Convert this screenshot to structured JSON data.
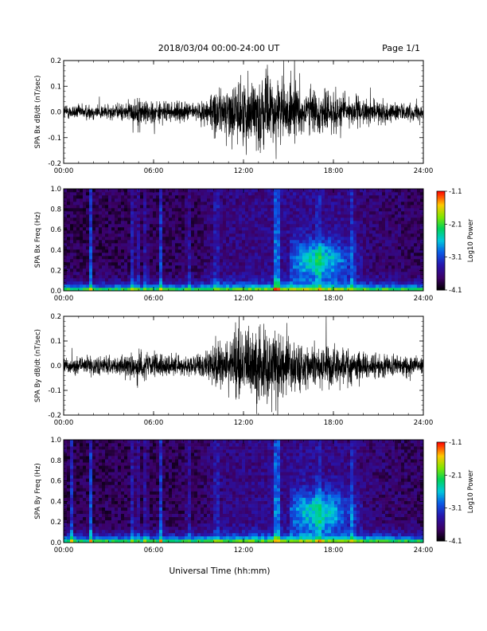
{
  "header": {
    "date_range": "2018/03/04  00:00-24:00 UT",
    "page": "Page 1/1"
  },
  "x_axis": {
    "label": "Universal Time (hh:mm)",
    "ticks": [
      "00:00",
      "06:00",
      "12:00",
      "18:00",
      "24:00"
    ]
  },
  "colorbar": {
    "label": "Log10 Power",
    "ticks": [
      "-1.1",
      "-2.1",
      "-3.1",
      "-4.1"
    ]
  },
  "chart_data": [
    {
      "type": "line",
      "panel": "bx_waveform",
      "ylabel": "SPA Bx dB/dt (nT/sec)",
      "xlim": [
        0,
        24
      ],
      "ylim": [
        -0.2,
        0.2
      ],
      "yticks": [
        "-0.2",
        "-0.1",
        "0.0",
        "0.1",
        "0.2"
      ],
      "envelope": {
        "hours": [
          0,
          1,
          2,
          3,
          4,
          4.5,
          5,
          5.5,
          6,
          6.5,
          7,
          8,
          9,
          9.5,
          10,
          10.5,
          11,
          12,
          13,
          14,
          14.5,
          15,
          16,
          17,
          18,
          19,
          20,
          21,
          22,
          23,
          24
        ],
        "amplitude": [
          0.035,
          0.035,
          0.04,
          0.035,
          0.04,
          0.05,
          0.07,
          0.06,
          0.055,
          0.05,
          0.045,
          0.045,
          0.04,
          0.07,
          0.1,
          0.11,
          0.12,
          0.16,
          0.17,
          0.16,
          0.15,
          0.14,
          0.11,
          0.1,
          0.1,
          0.08,
          0.06,
          0.05,
          0.045,
          0.04,
          0.035
        ]
      }
    },
    {
      "type": "heatmap",
      "panel": "bx_spectrogram",
      "ylabel": "SPA Bx Freq (Hz)",
      "xlim": [
        0,
        24
      ],
      "ylim": [
        0,
        1.0
      ],
      "yticks": [
        "0.0",
        "0.2",
        "0.4",
        "0.6",
        "0.8",
        "1.0"
      ],
      "zlim": [
        -4.1,
        -1.1
      ],
      "bright_columns_hours": [
        1.8,
        4.5,
        4.9,
        5.5,
        6.5,
        8.3,
        10.2,
        14.1,
        14.3,
        17.0,
        19.3
      ],
      "enhanced_region": {
        "hours": [
          15,
          20
        ],
        "freq_hz": [
          0.15,
          0.55
        ],
        "peak_hours": 17.0,
        "peak_freq_hz": 0.3
      }
    },
    {
      "type": "line",
      "panel": "by_waveform",
      "ylabel": "SPA By dB/dt (nT/sec)",
      "xlim": [
        0,
        24
      ],
      "ylim": [
        -0.2,
        0.2
      ],
      "yticks": [
        "-0.2",
        "-0.1",
        "0.0",
        "0.1",
        "0.2"
      ],
      "envelope": {
        "hours": [
          0,
          1,
          2,
          3,
          4,
          4.5,
          5,
          5.5,
          6,
          6.5,
          7,
          8,
          9,
          9.5,
          10,
          10.5,
          11,
          12,
          13,
          14,
          14.5,
          15,
          16,
          17,
          18,
          19,
          20,
          21,
          22,
          23,
          24
        ],
        "amplitude": [
          0.04,
          0.04,
          0.045,
          0.045,
          0.05,
          0.06,
          0.075,
          0.065,
          0.06,
          0.055,
          0.05,
          0.05,
          0.05,
          0.07,
          0.1,
          0.12,
          0.14,
          0.17,
          0.18,
          0.17,
          0.16,
          0.15,
          0.12,
          0.11,
          0.11,
          0.09,
          0.07,
          0.06,
          0.055,
          0.05,
          0.045
        ]
      }
    },
    {
      "type": "heatmap",
      "panel": "by_spectrogram",
      "ylabel": "SPA By Freq (Hz)",
      "xlim": [
        0,
        24
      ],
      "ylim": [
        0,
        1.0
      ],
      "yticks": [
        "0.0",
        "0.2",
        "0.4",
        "0.6",
        "0.8",
        "1.0"
      ],
      "zlim": [
        -4.1,
        -1.1
      ],
      "bright_columns_hours": [
        0.5,
        1.8,
        4.5,
        4.9,
        5.5,
        6.5,
        8.3,
        10.2,
        14.1,
        14.3,
        17.0,
        19.3
      ],
      "enhanced_region": {
        "hours": [
          15,
          20
        ],
        "freq_hz": [
          0.15,
          0.55
        ],
        "peak_hours": 17.0,
        "peak_freq_hz": 0.3
      }
    }
  ]
}
